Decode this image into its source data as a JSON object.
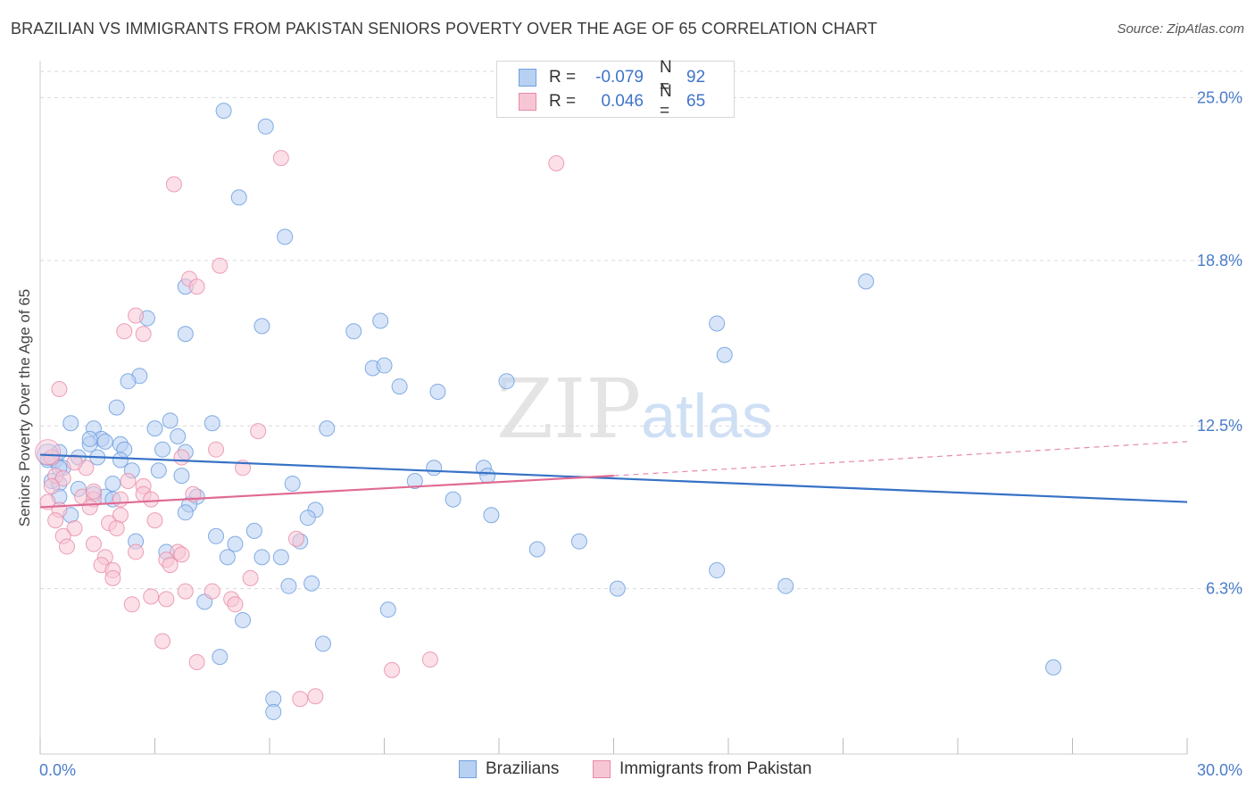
{
  "title": "BRAZILIAN VS IMMIGRANTS FROM PAKISTAN SENIORS POVERTY OVER THE AGE OF 65 CORRELATION CHART",
  "source": "Source: ZipAtlas.com",
  "watermark": {
    "zip": "ZIP",
    "atlas": "atlas"
  },
  "legend": {
    "series1": {
      "r_label": "R =",
      "r_value": "-0.079",
      "n_label": "N =",
      "n_value": "92"
    },
    "series2": {
      "r_label": "R =",
      "r_value": "0.046",
      "n_label": "N =",
      "n_value": "65"
    }
  },
  "colors": {
    "blue": "#6f9fe0",
    "blue_fill": "#b8d0f2",
    "pink": "#e88aa8",
    "pink_fill": "#f7c6d5",
    "blue_line": "#3671c6",
    "pink_line": "#e06a92",
    "grid": "#d9d9d9",
    "tick": "#4a7cc9"
  },
  "chart_data": {
    "type": "scatter",
    "title": "BRAZILIAN VS IMMIGRANTS FROM PAKISTAN SENIORS POVERTY OVER THE AGE OF 65 CORRELATION CHART",
    "xlabel": "",
    "ylabel": "Seniors Poverty Over the Age of 65",
    "xlim": [
      0,
      30
    ],
    "ylim": [
      0,
      26
    ],
    "x_tick_labels": [
      "0.0%",
      "30.0%"
    ],
    "y_ticks": [
      6.3,
      12.5,
      18.8,
      25.0
    ],
    "y_tick_labels": [
      "6.3%",
      "12.5%",
      "18.8%",
      "25.0%"
    ],
    "grid": true,
    "legend_position": "bottom",
    "series": [
      {
        "name": "Brazilians",
        "r": -0.079,
        "n": 92,
        "trend": {
          "x": [
            0,
            30
          ],
          "y": [
            11.4,
            9.6
          ],
          "style": "solid"
        },
        "points": [
          [
            4.8,
            24.5
          ],
          [
            5.9,
            23.9
          ],
          [
            5.2,
            21.2
          ],
          [
            6.4,
            19.7
          ],
          [
            21.6,
            18.0
          ],
          [
            3.8,
            17.8
          ],
          [
            2.8,
            16.6
          ],
          [
            3.8,
            16.0
          ],
          [
            5.8,
            16.3
          ],
          [
            8.2,
            16.1
          ],
          [
            8.9,
            16.5
          ],
          [
            17.7,
            16.4
          ],
          [
            17.9,
            15.2
          ],
          [
            8.7,
            14.7
          ],
          [
            9.0,
            14.8
          ],
          [
            2.6,
            14.4
          ],
          [
            2.3,
            14.2
          ],
          [
            9.4,
            14.0
          ],
          [
            12.2,
            14.2
          ],
          [
            10.4,
            13.8
          ],
          [
            2.0,
            13.2
          ],
          [
            4.5,
            12.6
          ],
          [
            3.4,
            12.7
          ],
          [
            0.8,
            12.6
          ],
          [
            1.4,
            12.4
          ],
          [
            7.5,
            12.4
          ],
          [
            3.0,
            12.4
          ],
          [
            3.6,
            12.1
          ],
          [
            1.6,
            12.0
          ],
          [
            1.7,
            11.9
          ],
          [
            2.1,
            11.8
          ],
          [
            1.3,
            11.8
          ],
          [
            3.2,
            11.6
          ],
          [
            2.2,
            11.6
          ],
          [
            3.8,
            11.5
          ],
          [
            1.0,
            11.3
          ],
          [
            1.5,
            11.3
          ],
          [
            0.4,
            11.2
          ],
          [
            0.6,
            10.9
          ],
          [
            0.2,
            11.2
          ],
          [
            0.5,
            11.5
          ],
          [
            3.1,
            10.8
          ],
          [
            2.4,
            10.8
          ],
          [
            3.7,
            10.6
          ],
          [
            11.6,
            10.9
          ],
          [
            10.3,
            10.9
          ],
          [
            0.3,
            10.4
          ],
          [
            0.5,
            10.3
          ],
          [
            1.9,
            10.3
          ],
          [
            6.6,
            10.3
          ],
          [
            9.8,
            10.4
          ],
          [
            11.7,
            10.6
          ],
          [
            1.0,
            10.1
          ],
          [
            0.5,
            9.8
          ],
          [
            1.7,
            9.8
          ],
          [
            1.4,
            9.9
          ],
          [
            1.9,
            9.7
          ],
          [
            4.1,
            9.8
          ],
          [
            3.9,
            9.5
          ],
          [
            10.8,
            9.7
          ],
          [
            7.2,
            9.3
          ],
          [
            3.8,
            9.2
          ],
          [
            0.8,
            9.1
          ],
          [
            7.0,
            9.0
          ],
          [
            11.8,
            9.1
          ],
          [
            5.6,
            8.5
          ],
          [
            6.8,
            8.1
          ],
          [
            4.6,
            8.3
          ],
          [
            2.5,
            8.1
          ],
          [
            5.1,
            8.0
          ],
          [
            14.1,
            8.1
          ],
          [
            13.0,
            7.8
          ],
          [
            3.3,
            7.7
          ],
          [
            5.8,
            7.5
          ],
          [
            6.3,
            7.5
          ],
          [
            4.9,
            7.5
          ],
          [
            17.7,
            7.0
          ],
          [
            6.5,
            6.4
          ],
          [
            7.1,
            6.5
          ],
          [
            15.1,
            6.3
          ],
          [
            19.5,
            6.4
          ],
          [
            4.3,
            5.8
          ],
          [
            9.1,
            5.5
          ],
          [
            5.3,
            5.1
          ],
          [
            7.4,
            4.2
          ],
          [
            4.7,
            3.7
          ],
          [
            26.5,
            3.3
          ],
          [
            6.1,
            2.1
          ],
          [
            6.1,
            1.6
          ],
          [
            0.5,
            10.9
          ],
          [
            1.3,
            12.0
          ],
          [
            2.1,
            11.2
          ]
        ]
      },
      {
        "name": "Immigrants from Pakistan",
        "r": 0.046,
        "n": 65,
        "trend": {
          "x": [
            0,
            15
          ],
          "y": [
            9.4,
            10.6
          ],
          "style": "solid"
        },
        "trend_extension": {
          "x": [
            15,
            30
          ],
          "y": [
            10.6,
            11.9
          ],
          "style": "dashed"
        },
        "points": [
          [
            6.3,
            22.7
          ],
          [
            13.5,
            22.5
          ],
          [
            3.5,
            21.7
          ],
          [
            4.7,
            18.6
          ],
          [
            3.9,
            18.1
          ],
          [
            4.1,
            17.8
          ],
          [
            2.5,
            16.7
          ],
          [
            2.2,
            16.1
          ],
          [
            2.7,
            16.0
          ],
          [
            0.5,
            13.9
          ],
          [
            5.7,
            12.3
          ],
          [
            4.6,
            11.6
          ],
          [
            3.7,
            11.3
          ],
          [
            0.3,
            11.3
          ],
          [
            5.3,
            10.9
          ],
          [
            1.2,
            10.9
          ],
          [
            0.4,
            10.6
          ],
          [
            2.3,
            10.4
          ],
          [
            2.7,
            10.2
          ],
          [
            0.6,
            10.5
          ],
          [
            2.7,
            9.9
          ],
          [
            1.1,
            9.8
          ],
          [
            1.4,
            9.7
          ],
          [
            2.1,
            9.7
          ],
          [
            2.9,
            9.7
          ],
          [
            0.2,
            9.6
          ],
          [
            0.5,
            9.3
          ],
          [
            1.3,
            9.4
          ],
          [
            2.1,
            9.1
          ],
          [
            0.4,
            8.9
          ],
          [
            1.8,
            8.8
          ],
          [
            3.0,
            8.9
          ],
          [
            2.0,
            8.6
          ],
          [
            0.9,
            8.6
          ],
          [
            0.6,
            8.3
          ],
          [
            6.7,
            8.2
          ],
          [
            1.4,
            8.0
          ],
          [
            0.7,
            7.9
          ],
          [
            2.5,
            7.7
          ],
          [
            3.6,
            7.7
          ],
          [
            1.7,
            7.5
          ],
          [
            3.7,
            7.6
          ],
          [
            3.3,
            7.4
          ],
          [
            1.6,
            7.2
          ],
          [
            3.4,
            7.2
          ],
          [
            1.9,
            7.0
          ],
          [
            5.5,
            6.7
          ],
          [
            1.9,
            6.7
          ],
          [
            3.8,
            6.2
          ],
          [
            4.5,
            6.2
          ],
          [
            2.9,
            6.0
          ],
          [
            3.3,
            5.9
          ],
          [
            5.0,
            5.9
          ],
          [
            2.4,
            5.7
          ],
          [
            5.1,
            5.7
          ],
          [
            3.2,
            4.3
          ],
          [
            4.1,
            3.5
          ],
          [
            10.2,
            3.6
          ],
          [
            9.2,
            3.2
          ],
          [
            7.2,
            2.2
          ],
          [
            6.8,
            2.1
          ],
          [
            1.4,
            10.0
          ],
          [
            0.9,
            11.1
          ],
          [
            0.3,
            10.2
          ],
          [
            4.0,
            9.9
          ]
        ]
      }
    ]
  }
}
